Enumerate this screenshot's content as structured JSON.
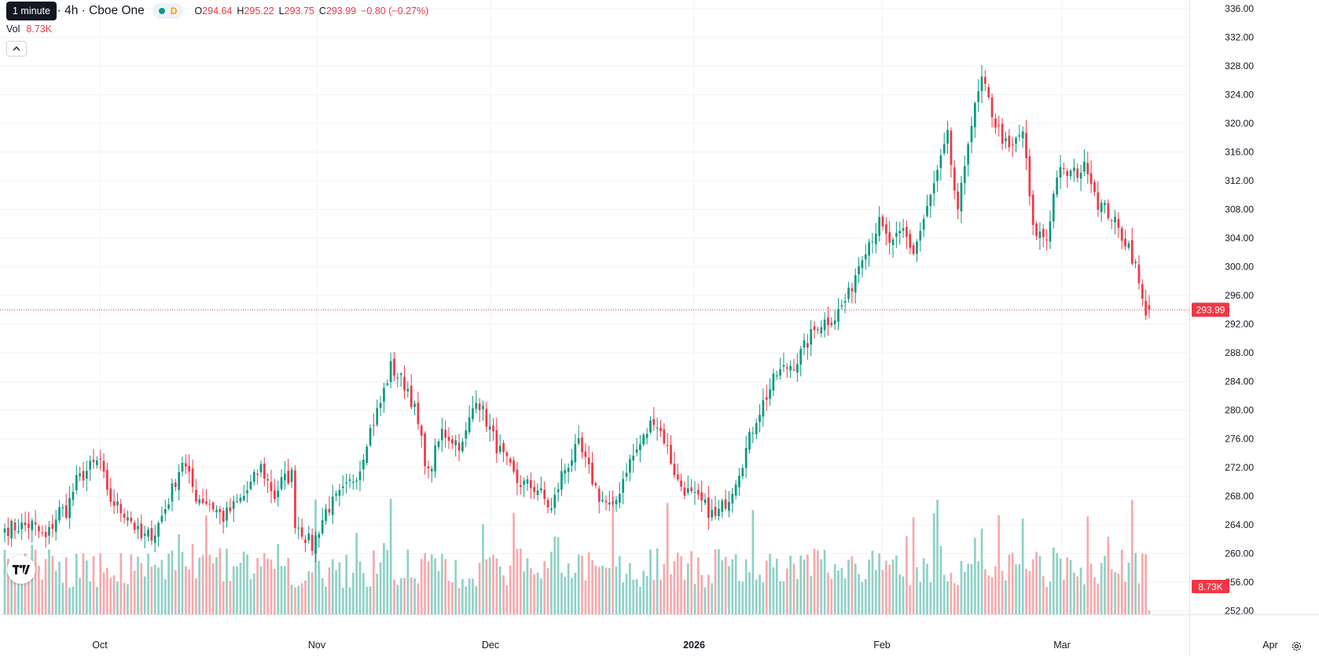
{
  "legend": {
    "title": "roup Inc. · 4h · Cboe One",
    "status_letter": "D",
    "open_label": "O",
    "open": "294.64",
    "high_label": "H",
    "high": "295.22",
    "low_label": "L",
    "low": "293.75",
    "close_label": "C",
    "close": "293.99",
    "change": "−0.80 (−0.27%)"
  },
  "tooltip": "1 minute",
  "volume": {
    "label": "Vol",
    "value": "8.73K"
  },
  "colors": {
    "up": "#089981",
    "down": "#f23645",
    "up_volume": "#8fd1c6",
    "down_volume": "#f7a9ac",
    "grid": "#f0f3fa",
    "axis_text": "#131722"
  },
  "icons": {
    "collapse": "chevron-up-icon",
    "logo": "tradingview-logo",
    "settings": "gear-icon"
  },
  "chart_data": {
    "type": "candlestick",
    "interval": "4h",
    "y_axis": {
      "ticks": [
        "252.00",
        "256.00",
        "260.00",
        "264.00",
        "268.00",
        "272.00",
        "276.00",
        "280.00",
        "284.00",
        "288.00",
        "292.00",
        "296.00",
        "300.00",
        "304.00",
        "308.00",
        "312.00",
        "316.00",
        "320.00",
        "324.00",
        "328.00",
        "332.00",
        "336.00"
      ],
      "range": [
        251.5,
        337.2
      ]
    },
    "x_axis": {
      "ticks": [
        "Oct",
        "Nov",
        "Dec",
        "2026",
        "Feb",
        "Mar",
        "Apr"
      ]
    },
    "last_price": "293.99",
    "last_volume": "8.73K",
    "anchors": [
      [
        0,
        263.5
      ],
      [
        8,
        264
      ],
      [
        12,
        262
      ],
      [
        16,
        266
      ],
      [
        18,
        266
      ],
      [
        21,
        270
      ],
      [
        25,
        272
      ],
      [
        28,
        273
      ],
      [
        30,
        268
      ],
      [
        34,
        266
      ],
      [
        36,
        265.5
      ],
      [
        40,
        262
      ],
      [
        44,
        263
      ],
      [
        48,
        267.5
      ],
      [
        52,
        273
      ],
      [
        56,
        268
      ],
      [
        60,
        267
      ],
      [
        64,
        265
      ],
      [
        70,
        268
      ],
      [
        75,
        272
      ],
      [
        79,
        268
      ],
      [
        81,
        270
      ],
      [
        84,
        271
      ],
      [
        85,
        264.5
      ],
      [
        90,
        261
      ],
      [
        94,
        266
      ],
      [
        100,
        269
      ],
      [
        104,
        272
      ],
      [
        106,
        276
      ],
      [
        110,
        281
      ],
      [
        113,
        286
      ],
      [
        118,
        283
      ],
      [
        120,
        280
      ],
      [
        124,
        271
      ],
      [
        128,
        277
      ],
      [
        134,
        275
      ],
      [
        138,
        282
      ],
      [
        144,
        275
      ],
      [
        150,
        270
      ],
      [
        156,
        269
      ],
      [
        160,
        266
      ],
      [
        163,
        271
      ],
      [
        168,
        275
      ],
      [
        174,
        268
      ],
      [
        178,
        266
      ],
      [
        182,
        272
      ],
      [
        187,
        276
      ],
      [
        190,
        279
      ],
      [
        193,
        276
      ],
      [
        197,
        270
      ],
      [
        201,
        268
      ],
      [
        204,
        267
      ],
      [
        208,
        265
      ],
      [
        212,
        268
      ],
      [
        216,
        273
      ],
      [
        220,
        279
      ],
      [
        226,
        285
      ],
      [
        232,
        287
      ],
      [
        238,
        292
      ],
      [
        243,
        293
      ],
      [
        247,
        296
      ],
      [
        251,
        302
      ],
      [
        256,
        306
      ],
      [
        258,
        304
      ],
      [
        260,
        303
      ],
      [
        263,
        305
      ],
      [
        266,
        302
      ],
      [
        270,
        308
      ],
      [
        276,
        318
      ],
      [
        279,
        307
      ],
      [
        282,
        318
      ],
      [
        286,
        326
      ],
      [
        290,
        320
      ],
      [
        294,
        316
      ],
      [
        298,
        319
      ],
      [
        301,
        305
      ],
      [
        305,
        304
      ],
      [
        308,
        313
      ],
      [
        313,
        313
      ],
      [
        317,
        314
      ],
      [
        320,
        309
      ],
      [
        324,
        307
      ],
      [
        326,
        305
      ],
      [
        329,
        303
      ],
      [
        331,
        300
      ],
      [
        333,
        295
      ],
      [
        334,
        294
      ],
      [
        335,
        293.99
      ]
    ],
    "volume_max": 25
  }
}
